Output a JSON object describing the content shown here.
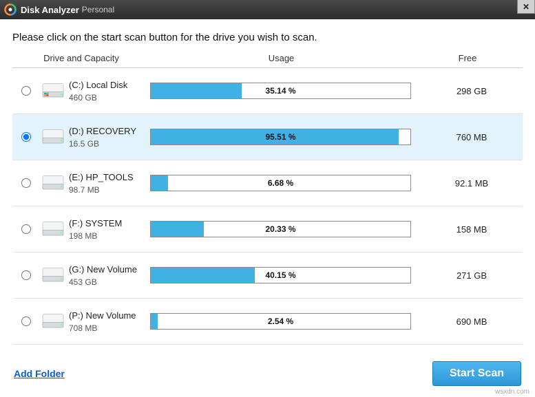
{
  "window": {
    "title": "Disk Analyzer",
    "edition": "Personal",
    "close_label": "✕"
  },
  "instruction": "Please click on the start scan button for the drive you wish to scan.",
  "columns": {
    "drive": "Drive and Capacity",
    "usage": "Usage",
    "free": "Free"
  },
  "drives": [
    {
      "name": "(C:)  Local Disk",
      "capacity": "460 GB",
      "usage_pct": 35.14,
      "usage_label": "35.14 %",
      "free": "298 GB",
      "selected": false,
      "os": true
    },
    {
      "name": "(D:)  RECOVERY",
      "capacity": "16.5 GB",
      "usage_pct": 95.51,
      "usage_label": "95.51 %",
      "free": "760 MB",
      "selected": true,
      "os": false
    },
    {
      "name": "(E:)  HP_TOOLS",
      "capacity": "98.7 MB",
      "usage_pct": 6.68,
      "usage_label": "6.68 %",
      "free": "92.1 MB",
      "selected": false,
      "os": false
    },
    {
      "name": "(F:)  SYSTEM",
      "capacity": "198 MB",
      "usage_pct": 20.33,
      "usage_label": "20.33 %",
      "free": "158 MB",
      "selected": false,
      "os": false
    },
    {
      "name": "(G:)  New Volume",
      "capacity": "453 GB",
      "usage_pct": 40.15,
      "usage_label": "40.15 %",
      "free": "271 GB",
      "selected": false,
      "os": false
    },
    {
      "name": "(P:)  New Volume",
      "capacity": "708 MB",
      "usage_pct": 2.54,
      "usage_label": "2.54 %",
      "free": "690 MB",
      "selected": false,
      "os": false
    }
  ],
  "footer": {
    "add_folder": "Add Folder",
    "start_scan": "Start Scan"
  },
  "colors": {
    "bar_fill": "#3fb1e3",
    "bar_border": "#8a8a8a",
    "row_selected_bg": "#e3f3fb",
    "button_top": "#4fb8ef",
    "button_bottom": "#2e97d8",
    "link": "#0a5bd3"
  },
  "watermark": "wsxdn.com"
}
